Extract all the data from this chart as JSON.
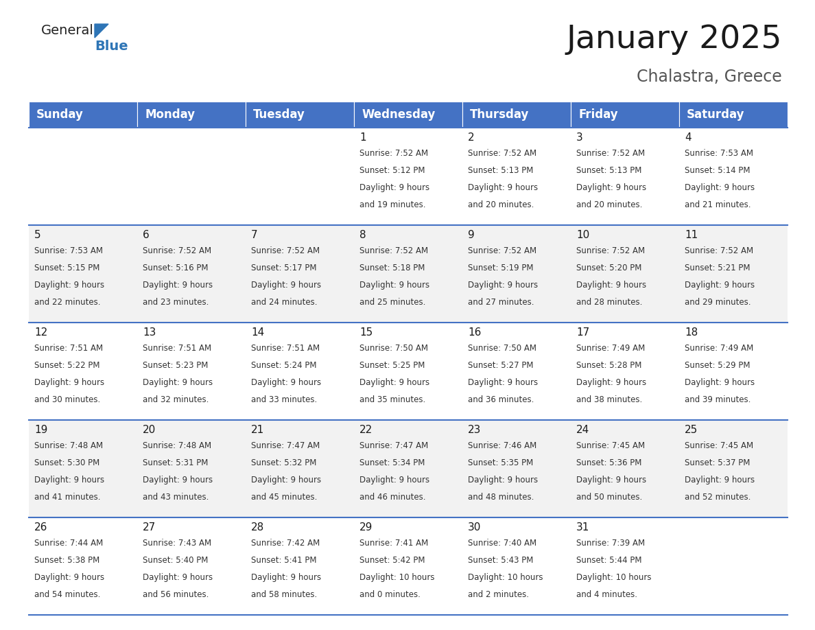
{
  "title": "January 2025",
  "subtitle": "Chalastra, Greece",
  "header_color": "#4472C4",
  "header_text_color": "#FFFFFF",
  "days_of_week": [
    "Sunday",
    "Monday",
    "Tuesday",
    "Wednesday",
    "Thursday",
    "Friday",
    "Saturday"
  ],
  "bg_color": "#FFFFFF",
  "cell_bg_even": "#F2F2F2",
  "cell_bg_odd": "#FFFFFF",
  "cell_border_color": "#4472C4",
  "calendar": [
    [
      {
        "day": "",
        "sunrise": "",
        "sunset": "",
        "daylight_h": "",
        "daylight_m": ""
      },
      {
        "day": "",
        "sunrise": "",
        "sunset": "",
        "daylight_h": "",
        "daylight_m": ""
      },
      {
        "day": "",
        "sunrise": "",
        "sunset": "",
        "daylight_h": "",
        "daylight_m": ""
      },
      {
        "day": "1",
        "sunrise": "7:52 AM",
        "sunset": "5:12 PM",
        "daylight_h": "9 hours",
        "daylight_m": "and 19 minutes."
      },
      {
        "day": "2",
        "sunrise": "7:52 AM",
        "sunset": "5:13 PM",
        "daylight_h": "9 hours",
        "daylight_m": "and 20 minutes."
      },
      {
        "day": "3",
        "sunrise": "7:52 AM",
        "sunset": "5:13 PM",
        "daylight_h": "9 hours",
        "daylight_m": "and 20 minutes."
      },
      {
        "day": "4",
        "sunrise": "7:53 AM",
        "sunset": "5:14 PM",
        "daylight_h": "9 hours",
        "daylight_m": "and 21 minutes."
      }
    ],
    [
      {
        "day": "5",
        "sunrise": "7:53 AM",
        "sunset": "5:15 PM",
        "daylight_h": "9 hours",
        "daylight_m": "and 22 minutes."
      },
      {
        "day": "6",
        "sunrise": "7:52 AM",
        "sunset": "5:16 PM",
        "daylight_h": "9 hours",
        "daylight_m": "and 23 minutes."
      },
      {
        "day": "7",
        "sunrise": "7:52 AM",
        "sunset": "5:17 PM",
        "daylight_h": "9 hours",
        "daylight_m": "and 24 minutes."
      },
      {
        "day": "8",
        "sunrise": "7:52 AM",
        "sunset": "5:18 PM",
        "daylight_h": "9 hours",
        "daylight_m": "and 25 minutes."
      },
      {
        "day": "9",
        "sunrise": "7:52 AM",
        "sunset": "5:19 PM",
        "daylight_h": "9 hours",
        "daylight_m": "and 27 minutes."
      },
      {
        "day": "10",
        "sunrise": "7:52 AM",
        "sunset": "5:20 PM",
        "daylight_h": "9 hours",
        "daylight_m": "and 28 minutes."
      },
      {
        "day": "11",
        "sunrise": "7:52 AM",
        "sunset": "5:21 PM",
        "daylight_h": "9 hours",
        "daylight_m": "and 29 minutes."
      }
    ],
    [
      {
        "day": "12",
        "sunrise": "7:51 AM",
        "sunset": "5:22 PM",
        "daylight_h": "9 hours",
        "daylight_m": "and 30 minutes."
      },
      {
        "day": "13",
        "sunrise": "7:51 AM",
        "sunset": "5:23 PM",
        "daylight_h": "9 hours",
        "daylight_m": "and 32 minutes."
      },
      {
        "day": "14",
        "sunrise": "7:51 AM",
        "sunset": "5:24 PM",
        "daylight_h": "9 hours",
        "daylight_m": "and 33 minutes."
      },
      {
        "day": "15",
        "sunrise": "7:50 AM",
        "sunset": "5:25 PM",
        "daylight_h": "9 hours",
        "daylight_m": "and 35 minutes."
      },
      {
        "day": "16",
        "sunrise": "7:50 AM",
        "sunset": "5:27 PM",
        "daylight_h": "9 hours",
        "daylight_m": "and 36 minutes."
      },
      {
        "day": "17",
        "sunrise": "7:49 AM",
        "sunset": "5:28 PM",
        "daylight_h": "9 hours",
        "daylight_m": "and 38 minutes."
      },
      {
        "day": "18",
        "sunrise": "7:49 AM",
        "sunset": "5:29 PM",
        "daylight_h": "9 hours",
        "daylight_m": "and 39 minutes."
      }
    ],
    [
      {
        "day": "19",
        "sunrise": "7:48 AM",
        "sunset": "5:30 PM",
        "daylight_h": "9 hours",
        "daylight_m": "and 41 minutes."
      },
      {
        "day": "20",
        "sunrise": "7:48 AM",
        "sunset": "5:31 PM",
        "daylight_h": "9 hours",
        "daylight_m": "and 43 minutes."
      },
      {
        "day": "21",
        "sunrise": "7:47 AM",
        "sunset": "5:32 PM",
        "daylight_h": "9 hours",
        "daylight_m": "and 45 minutes."
      },
      {
        "day": "22",
        "sunrise": "7:47 AM",
        "sunset": "5:34 PM",
        "daylight_h": "9 hours",
        "daylight_m": "and 46 minutes."
      },
      {
        "day": "23",
        "sunrise": "7:46 AM",
        "sunset": "5:35 PM",
        "daylight_h": "9 hours",
        "daylight_m": "and 48 minutes."
      },
      {
        "day": "24",
        "sunrise": "7:45 AM",
        "sunset": "5:36 PM",
        "daylight_h": "9 hours",
        "daylight_m": "and 50 minutes."
      },
      {
        "day": "25",
        "sunrise": "7:45 AM",
        "sunset": "5:37 PM",
        "daylight_h": "9 hours",
        "daylight_m": "and 52 minutes."
      }
    ],
    [
      {
        "day": "26",
        "sunrise": "7:44 AM",
        "sunset": "5:38 PM",
        "daylight_h": "9 hours",
        "daylight_m": "and 54 minutes."
      },
      {
        "day": "27",
        "sunrise": "7:43 AM",
        "sunset": "5:40 PM",
        "daylight_h": "9 hours",
        "daylight_m": "and 56 minutes."
      },
      {
        "day": "28",
        "sunrise": "7:42 AM",
        "sunset": "5:41 PM",
        "daylight_h": "9 hours",
        "daylight_m": "and 58 minutes."
      },
      {
        "day": "29",
        "sunrise": "7:41 AM",
        "sunset": "5:42 PM",
        "daylight_h": "10 hours",
        "daylight_m": "and 0 minutes."
      },
      {
        "day": "30",
        "sunrise": "7:40 AM",
        "sunset": "5:43 PM",
        "daylight_h": "10 hours",
        "daylight_m": "and 2 minutes."
      },
      {
        "day": "31",
        "sunrise": "7:39 AM",
        "sunset": "5:44 PM",
        "daylight_h": "10 hours",
        "daylight_m": "and 4 minutes."
      },
      {
        "day": "",
        "sunrise": "",
        "sunset": "",
        "daylight_h": "",
        "daylight_m": ""
      }
    ]
  ],
  "title_fontsize": 34,
  "subtitle_fontsize": 17,
  "header_fontsize": 12,
  "day_num_fontsize": 11,
  "cell_text_fontsize": 8.5
}
